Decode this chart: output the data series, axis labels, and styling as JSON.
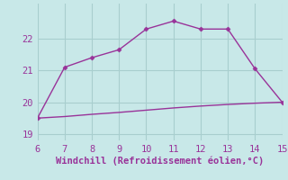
{
  "xlabel": "Windchill (Refroidissement éolien,°C)",
  "line1_x": [
    6,
    7,
    8,
    9,
    10,
    11,
    12,
    13,
    14,
    15
  ],
  "line1_y": [
    19.5,
    21.1,
    21.4,
    21.65,
    22.3,
    22.55,
    22.3,
    22.3,
    21.05,
    20.0
  ],
  "line2_x": [
    6,
    7,
    8,
    9,
    10,
    11,
    12,
    13,
    14,
    15
  ],
  "line2_y": [
    19.5,
    19.55,
    19.62,
    19.68,
    19.75,
    19.82,
    19.88,
    19.93,
    19.97,
    20.0
  ],
  "line_color": "#993399",
  "bg_color": "#c8e8e8",
  "grid_color": "#a8cece",
  "tick_label_color": "#993399",
  "xlabel_color": "#993399",
  "xlim": [
    6,
    15
  ],
  "ylim": [
    18.8,
    23.1
  ],
  "yticks": [
    19,
    20,
    21,
    22
  ],
  "xticks": [
    6,
    7,
    8,
    9,
    10,
    11,
    12,
    13,
    14,
    15
  ],
  "marker": "D",
  "markersize": 2.5,
  "linewidth": 1.0,
  "fontsize_xlabel": 7.5,
  "fontsize_tick": 7.5
}
